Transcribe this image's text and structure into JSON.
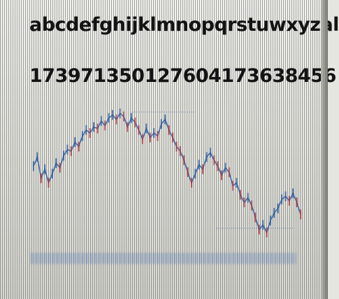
{
  "screen": {
    "alphabet_line": "abcdefghijklmnopqrstuwxyzal",
    "digits_line": "173971350127604173638456",
    "caption_text": "",
    "colors": {
      "line": "#2b5fa6",
      "candle_up": "#2b5fa6",
      "candle_down": "#b8323a",
      "caption": "#5e77a0"
    },
    "price_series": [
      5,
      5.6,
      4.2,
      4.8,
      3.9,
      4.5,
      5.2,
      4.9,
      5.7,
      6.1,
      6.0,
      6.6,
      6.3,
      7.0,
      7.4,
      7.2,
      7.6,
      7.5,
      8.0,
      7.7,
      8.2,
      8.4,
      8.1,
      8.5,
      8.3,
      7.6,
      8.2,
      7.9,
      7.4,
      6.8,
      7.5,
      6.9,
      7.2,
      7.0,
      7.8,
      8.1,
      7.4,
      6.9,
      6.3,
      6.0,
      5.4,
      4.6,
      3.9,
      4.5,
      5.1,
      4.8,
      5.6,
      5.9,
      5.4,
      5.0,
      4.4,
      4.9,
      4.6,
      3.7,
      3.9,
      3.1,
      2.6,
      2.9,
      2.4,
      1.6,
      0.8,
      1.1,
      0.6,
      1.4,
      1.9,
      2.2,
      2.8,
      3.0,
      2.7,
      3.2,
      2.6,
      1.8
    ]
  }
}
